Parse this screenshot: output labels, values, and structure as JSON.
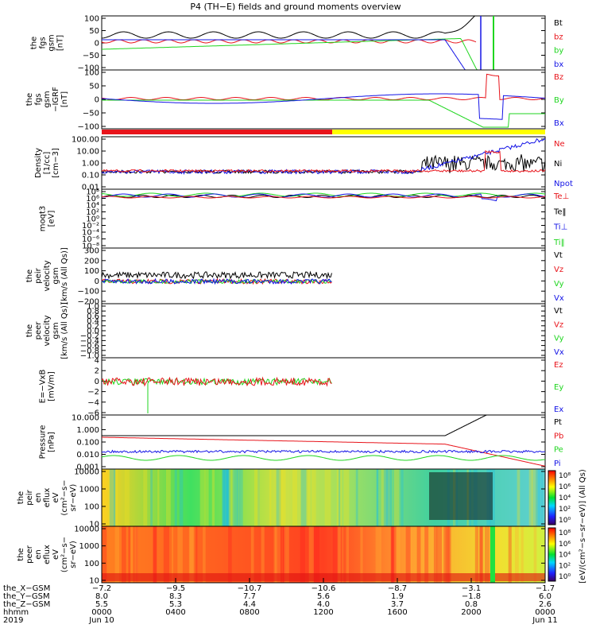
{
  "title": "P4 (TH−E) fields and ground moments overview",
  "colors": {
    "black": "#000000",
    "red": "#e8141b",
    "green": "#1fd61f",
    "blue": "#1414e6",
    "yellow": "#ffff00"
  },
  "chart_data": [
    {
      "type": "line",
      "ylabel": [
        "the",
        "fgs",
        "gsm",
        "[nT]"
      ],
      "yticks": [
        "100",
        "50",
        "0",
        "−50",
        "−100"
      ],
      "ylim": [
        -100,
        100
      ],
      "legend": [
        "Bt",
        "bz",
        "by",
        "bx"
      ],
      "legend_colors": [
        "black",
        "red",
        "green",
        "blue"
      ]
    },
    {
      "type": "line",
      "ylabel": [
        "the",
        "fgs",
        "gsm",
        "−IGRF",
        "[nT]"
      ],
      "yticks": [
        "100",
        "50",
        "0",
        "−50",
        "−100"
      ],
      "ylim": [
        -125,
        100
      ],
      "legend": [
        "Bz",
        "By",
        "Bx"
      ],
      "legend_colors": [
        "red",
        "green",
        "blue"
      ]
    },
    {
      "type": "line",
      "ylabel": [
        "Density",
        "[1/cc]",
        "[cm−3]"
      ],
      "yticks": [
        "100.00",
        "10.00",
        "1.00",
        "0.10",
        "0.01"
      ],
      "scale": "log",
      "ylim": [
        0.01,
        200
      ],
      "legend": [
        "Ne",
        "Ni",
        "Npot"
      ],
      "legend_colors": [
        "red",
        "black",
        "blue"
      ]
    },
    {
      "type": "line",
      "ylabel": [
        "moqt3",
        "[eV]"
      ],
      "yticks": [
        "10⁸",
        "10⁶",
        "10⁴",
        "10²",
        "10⁰",
        "10⁻²",
        "10⁻⁴",
        "10⁻⁶",
        "10⁻⁸"
      ],
      "scale": "log",
      "legend": [
        "Te⊥",
        "Te‖",
        "Ti⊥",
        "Ti‖"
      ],
      "legend_colors": [
        "red",
        "black",
        "blue",
        "green"
      ]
    },
    {
      "type": "line",
      "ylabel": [
        "the",
        "peir",
        "velocity",
        "gsm",
        "[km/s (All Qs)]"
      ],
      "yticks": [
        "300",
        "200",
        "100",
        "0",
        "−100",
        "−200"
      ],
      "ylim": [
        -200,
        300
      ],
      "legend": [
        "Vt",
        "Vz",
        "Vy",
        "Vx"
      ],
      "legend_colors": [
        "black",
        "red",
        "green",
        "blue"
      ]
    },
    {
      "type": "line",
      "ylabel": [
        "the",
        "peer",
        "velocity",
        "gsm",
        "[km/s (All Qs)]"
      ],
      "yticks": [
        "1.0",
        "0.8",
        "0.6",
        "0.4",
        "0.2",
        "0.0",
        "−0.2",
        "−0.4",
        "−0.6",
        "−0.8",
        "−1.0"
      ],
      "ylim": [
        -1,
        1
      ],
      "legend": [
        "Vt",
        "Vz",
        "Vy",
        "Vx"
      ],
      "legend_colors": [
        "black",
        "red",
        "green",
        "blue"
      ]
    },
    {
      "type": "line",
      "ylabel": [
        "E=−VxB",
        "[mV/m]"
      ],
      "yticks": [
        "4",
        "2",
        "0",
        "−2",
        "−4",
        "−6"
      ],
      "ylim": [
        -6,
        4
      ],
      "legend": [
        "Ez",
        "Ey",
        "Ex"
      ],
      "legend_colors": [
        "red",
        "green",
        "blue"
      ]
    },
    {
      "type": "line",
      "ylabel": [
        "Pressure",
        "[nPa]"
      ],
      "yticks": [
        "10.000",
        "1.000",
        "0.100",
        "0.010",
        "0.001"
      ],
      "scale": "log",
      "legend": [
        "Pt",
        "Pb",
        "Pe",
        "Pi"
      ],
      "legend_colors": [
        "black",
        "red",
        "green",
        "blue"
      ]
    },
    {
      "type": "heatmap",
      "ylabel": [
        "the",
        "peir",
        "en",
        "eflux",
        "eV",
        "(cm²−s−",
        "sr−eV)"
      ],
      "yticks": [
        "10000",
        "1000",
        "100",
        "10"
      ],
      "scale": "log"
    },
    {
      "type": "heatmap",
      "ylabel": [
        "the",
        "peer",
        "en",
        "eflux",
        "eV",
        "(cm²−s−",
        "sr−eV)"
      ],
      "yticks": [
        "10000",
        "1000",
        "100",
        "10"
      ],
      "scale": "log"
    }
  ],
  "colorbar": {
    "label": "[eV/(cm²−s−sr−eV)] (All Qs)",
    "ticks_top": [
      "10⁸",
      "10⁶",
      "10⁴",
      "10²",
      "10⁰"
    ],
    "ticks_bottom": [
      "10⁸",
      "10⁶",
      "10⁴",
      "10²",
      "10⁰"
    ]
  },
  "xaxis": {
    "row_labels": [
      "the_X−GSM",
      "the_Y−GSM",
      "the_Z−GSM",
      "hhmm",
      "2019"
    ],
    "columns": [
      {
        "x": "−7.2",
        "y": "8.0",
        "z": "5.5",
        "time": "0000",
        "date": "Jun 10"
      },
      {
        "x": "−9.5",
        "y": "8.3",
        "z": "5.3",
        "time": "0400",
        "date": ""
      },
      {
        "x": "−10.7",
        "y": "7.7",
        "z": "4.4",
        "time": "0800",
        "date": ""
      },
      {
        "x": "−10.6",
        "y": "5.6",
        "z": "4.0",
        "time": "1200",
        "date": ""
      },
      {
        "x": "−8.7",
        "y": "1.9",
        "z": "3.7",
        "time": "1600",
        "date": ""
      },
      {
        "x": "−3.1",
        "y": "−1.8",
        "z": "0.8",
        "time": "2000",
        "date": ""
      },
      {
        "x": "−1.7",
        "y": "6.0",
        "z": "2.6",
        "time": "0000",
        "date": "Jun 11"
      }
    ]
  }
}
